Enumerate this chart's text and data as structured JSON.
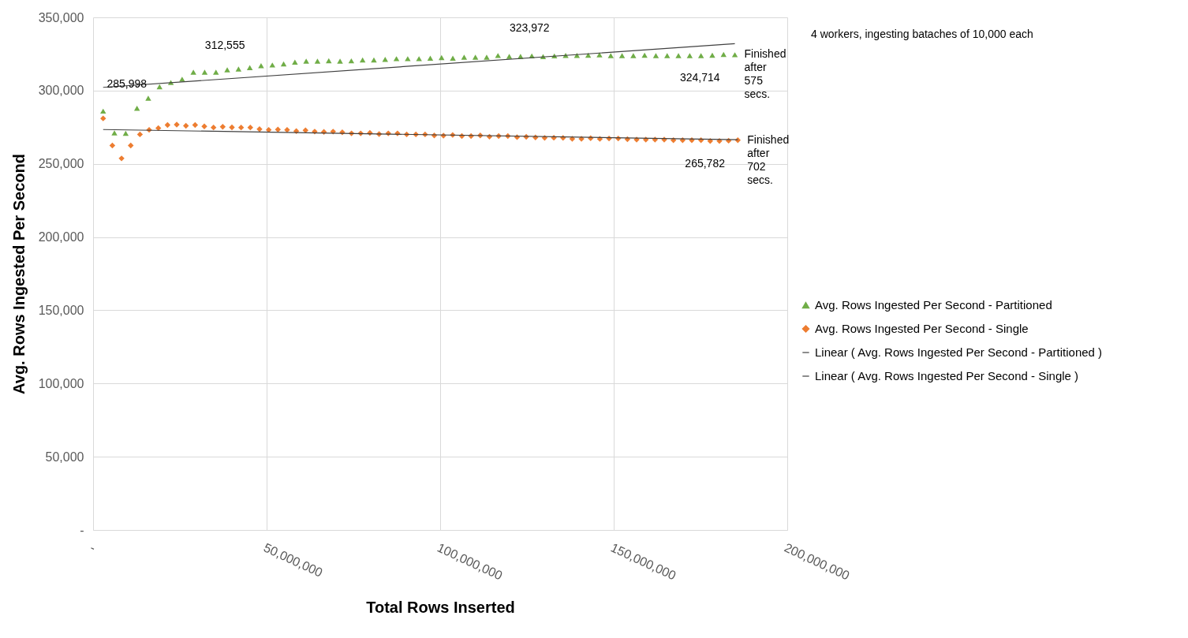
{
  "chart_data": {
    "type": "scatter",
    "xlabel": "Total Rows Inserted",
    "ylabel": "Avg. Rows Ingested Per Second",
    "xlim": [
      0,
      200000000
    ],
    "xticks": [
      {
        "value": 0,
        "label": "-"
      },
      {
        "value": 50000000,
        "label": "50,000,000"
      },
      {
        "value": 100000000,
        "label": "100,000,000"
      },
      {
        "value": 150000000,
        "label": "150,000,000"
      },
      {
        "value": 200000000,
        "label": "200,000,000"
      }
    ],
    "ylim": [
      0,
      350000
    ],
    "yticks": [
      {
        "value": 0,
        "label": "-"
      },
      {
        "value": 50000,
        "label": "50,000"
      },
      {
        "value": 100000,
        "label": "100,000"
      },
      {
        "value": 150000,
        "label": "150,000"
      },
      {
        "value": 200000,
        "label": "200,000"
      },
      {
        "value": 250000,
        "label": "250,000"
      },
      {
        "value": 300000,
        "label": "300,000"
      },
      {
        "value": 350000,
        "label": "350,000"
      }
    ],
    "grid": true,
    "legend": "right",
    "series": [
      {
        "name": "Avg. Rows Ingested Per Second - Partitioned",
        "marker": "triangle",
        "color": "#70ad47",
        "x": [
          2900000,
          6150000,
          9400000,
          12650000,
          15900000,
          19150000,
          22400000,
          25650000,
          28900000,
          32150000,
          35400000,
          38650000,
          41900000,
          45150000,
          48400000,
          51650000,
          54900000,
          58150000,
          61400000,
          64650000,
          67900000,
          71150000,
          74400000,
          77650000,
          80900000,
          84150000,
          87400000,
          90650000,
          93900000,
          97150000,
          100400000,
          103650000,
          106900000,
          110150000,
          113400000,
          116650000,
          119900000,
          123150000,
          126400000,
          129650000,
          132900000,
          136150000,
          139400000,
          142650000,
          145900000,
          149150000,
          152400000,
          155650000,
          158900000,
          162150000,
          165400000,
          168650000,
          171900000,
          175150000,
          178400000,
          181650000,
          184900000
        ],
        "values": [
          285998,
          271100,
          270800,
          287900,
          294800,
          302600,
          305500,
          307800,
          312555,
          312600,
          312600,
          314200,
          314700,
          315700,
          317000,
          317500,
          318200,
          319400,
          320100,
          320100,
          320400,
          320100,
          320300,
          320900,
          320900,
          321300,
          321800,
          321800,
          321800,
          322100,
          322500,
          322100,
          322800,
          322800,
          322800,
          323972,
          323300,
          323300,
          323700,
          323200,
          323700,
          324000,
          324000,
          324200,
          324400,
          323900,
          323900,
          323900,
          324200,
          323900,
          323900,
          323900,
          323900,
          323900,
          324200,
          324714,
          324500
        ]
      },
      {
        "name": "Avg. Rows Ingested Per Second - Single",
        "marker": "diamond",
        "color": "#ed7d31",
        "x": [
          2900000,
          5550000,
          8200000,
          10850000,
          13500000,
          16150000,
          18800000,
          21450000,
          24100000,
          26750000,
          29400000,
          32050000,
          34700000,
          37350000,
          40000000,
          42650000,
          45300000,
          47950000,
          50600000,
          53250000,
          55900000,
          58550000,
          61200000,
          63850000,
          66500000,
          69150000,
          71800000,
          74450000,
          77100000,
          79750000,
          82400000,
          85050000,
          87700000,
          90350000,
          93000000,
          95650000,
          98300000,
          100950000,
          103600000,
          106250000,
          108900000,
          111550000,
          114200000,
          116850000,
          119500000,
          122150000,
          124800000,
          127450000,
          130100000,
          132750000,
          135400000,
          138050000,
          140700000,
          143350000,
          146000000,
          148650000,
          151300000,
          153950000,
          156600000,
          159250000,
          161900000,
          164550000,
          167200000,
          169850000,
          172500000,
          175150000,
          177800000,
          180450000,
          183100000,
          185750000
        ],
        "values": [
          281000,
          262500,
          253700,
          262500,
          270100,
          273200,
          274400,
          276500,
          276800,
          276000,
          276500,
          275600,
          274800,
          275300,
          274900,
          274800,
          274800,
          273700,
          273200,
          273400,
          273200,
          272300,
          272900,
          272000,
          271800,
          272000,
          271500,
          270800,
          270800,
          271100,
          270300,
          270800,
          270800,
          270100,
          270100,
          270100,
          269400,
          269200,
          269700,
          269000,
          269000,
          269400,
          268500,
          269000,
          269000,
          268200,
          268400,
          268000,
          267700,
          267800,
          267700,
          267100,
          267100,
          267500,
          267000,
          267300,
          267300,
          266800,
          266500,
          266500,
          266500,
          266500,
          266100,
          266100,
          266100,
          266100,
          265600,
          265600,
          265782,
          266100
        ]
      },
      {
        "name": "Linear ( Avg. Rows Ingested Per Second - Partitioned  )",
        "type": "line",
        "marker": "none",
        "color": "#404040",
        "x": [
          2900000,
          184900000
        ],
        "values": [
          302200,
          332000
        ]
      },
      {
        "name": "Linear ( Avg. Rows Ingested Per Second - Single )",
        "type": "line",
        "marker": "none",
        "color": "#404040",
        "x": [
          2900000,
          185750000
        ],
        "values": [
          273400,
          266500
        ]
      }
    ],
    "annotations": [
      {
        "text": "285,998",
        "x": 2900000,
        "y": 285998
      },
      {
        "text": "312,555",
        "x": 28900000,
        "y": 312555
      },
      {
        "text": "323,972",
        "x": 116650000,
        "y": 323972
      },
      {
        "text": "324,714",
        "x": 181650000,
        "y": 324714
      },
      {
        "text": "265,782",
        "x": 183100000,
        "y": 265782
      },
      {
        "text": "Finished after 575 secs.",
        "x": 184900000,
        "y": 324500
      },
      {
        "text": "Finished after 702 secs.",
        "x": 185750000,
        "y": 266100
      },
      "4 workers, ingesting bataches of 10,000 each"
    ]
  }
}
